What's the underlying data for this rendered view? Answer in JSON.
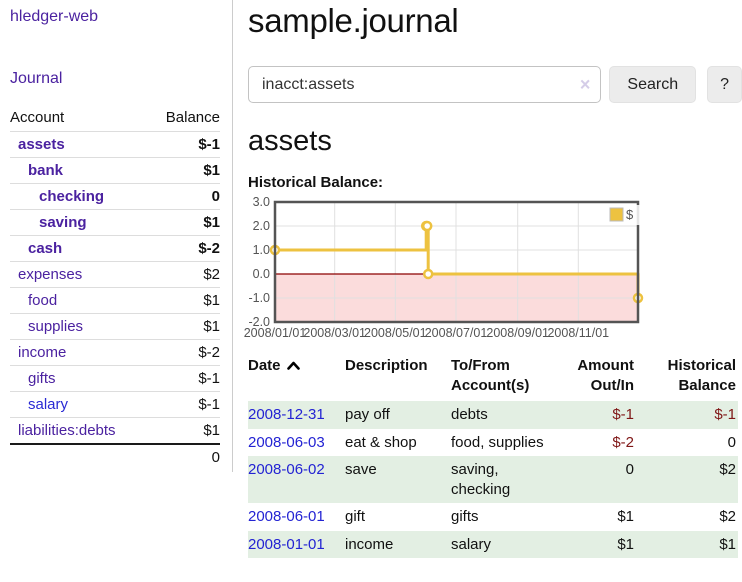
{
  "colors": {
    "link_purple": "#4b22a0",
    "link_blue": "#2a2ad4",
    "negative_strong": "#7f1616",
    "negative_soft": "#c58585",
    "row_stripe_green": "#e3efe3",
    "series_gold": "#edc240",
    "chart_negative_fill": "#fbdcdc",
    "chart_zero_line": "#8b0000",
    "chart_frame": "#545454",
    "grid_line": "#e0e0e0",
    "button_bg": "#ececec",
    "table_date_blue": "#2323d3"
  },
  "icons": {
    "sort_ascending": "chevron-up",
    "clear_search": "x-clear"
  },
  "sidebar": {
    "app_title": "hledger-web",
    "journal_link": "Journal",
    "accounts": {
      "col_account": "Account",
      "col_balance": "Balance",
      "rows": [
        {
          "name": "assets",
          "balance": "$-1",
          "indent": 1,
          "bold": true,
          "blue": false
        },
        {
          "name": "bank",
          "balance": "$1",
          "indent": 2,
          "bold": true,
          "blue": false
        },
        {
          "name": "checking",
          "balance": "0",
          "indent": 3,
          "bold": true,
          "blue": false
        },
        {
          "name": "saving",
          "balance": "$1",
          "indent": 3,
          "bold": true,
          "blue": false
        },
        {
          "name": "cash",
          "balance": "$-2",
          "indent": 2,
          "bold": true,
          "blue": false
        },
        {
          "name": "expenses",
          "balance": "$2",
          "indent": 1,
          "bold": false,
          "blue": false
        },
        {
          "name": "food",
          "balance": "$1",
          "indent": 2,
          "bold": false,
          "blue": false
        },
        {
          "name": "supplies",
          "balance": "$1",
          "indent": 2,
          "bold": false,
          "blue": false
        },
        {
          "name": "income",
          "balance": "$-2",
          "indent": 1,
          "bold": false,
          "blue": false
        },
        {
          "name": "gifts",
          "balance": "$-1",
          "indent": 2,
          "bold": false,
          "blue": false
        },
        {
          "name": "salary",
          "balance": "$-1",
          "indent": 2,
          "bold": false,
          "blue": true
        },
        {
          "name": "liabilities:debts",
          "balance": "$1",
          "indent": 1,
          "bold": false,
          "blue": false
        }
      ],
      "total": "0"
    }
  },
  "main": {
    "title": "sample.journal",
    "search": {
      "value": "inacct:assets",
      "clear_icon": "×",
      "button_label": "Search",
      "help_label": "?"
    },
    "register": {
      "heading": "assets",
      "chart_title": "Historical Balance:"
    }
  },
  "chart_data": {
    "type": "line",
    "step": true,
    "title": "Historical Balance:",
    "x": [
      "2008-01-01",
      "2008-06-01",
      "2008-06-02",
      "2008-06-03",
      "2008-12-31"
    ],
    "series": [
      {
        "name": "$",
        "color": "#edc240",
        "values": [
          1,
          2,
          2,
          0,
          -1
        ]
      }
    ],
    "xlim": [
      "2008-01-01",
      "2008-12-31"
    ],
    "ylim": [
      -2,
      3
    ],
    "x_tick_labels": [
      "2008/01/01",
      "2008/03/01",
      "2008/05/01",
      "2008/07/01",
      "2008/09/01",
      "2008/11/01"
    ],
    "y_ticks": [
      3,
      2,
      1,
      0,
      -1,
      -2
    ],
    "grid": true,
    "legend_position": "top-right",
    "negative_region": true
  },
  "transactions": {
    "columns": [
      {
        "label": "Date",
        "align": "left",
        "sorted": "asc"
      },
      {
        "label": "Description",
        "align": "left"
      },
      {
        "label": "To/From\nAccount(s)",
        "align": "left"
      },
      {
        "label": "Amount\nOut/In",
        "align": "right"
      },
      {
        "label": "Historical\nBalance",
        "align": "right"
      }
    ],
    "rows": [
      {
        "date": "2008-12-31",
        "description": "pay off",
        "accounts": "debts",
        "amount": "$-1",
        "balance": "$-1"
      },
      {
        "date": "2008-06-03",
        "description": "eat & shop",
        "accounts": "food, supplies",
        "amount": "$-2",
        "balance": "0"
      },
      {
        "date": "2008-06-02",
        "description": "save",
        "accounts": "saving,\nchecking",
        "amount": "0",
        "balance": "$2"
      },
      {
        "date": "2008-06-01",
        "description": "gift",
        "accounts": "gifts",
        "amount": "$1",
        "balance": "$2"
      },
      {
        "date": "2008-01-01",
        "description": "income",
        "accounts": "salary",
        "amount": "$1",
        "balance": "$1"
      }
    ]
  }
}
